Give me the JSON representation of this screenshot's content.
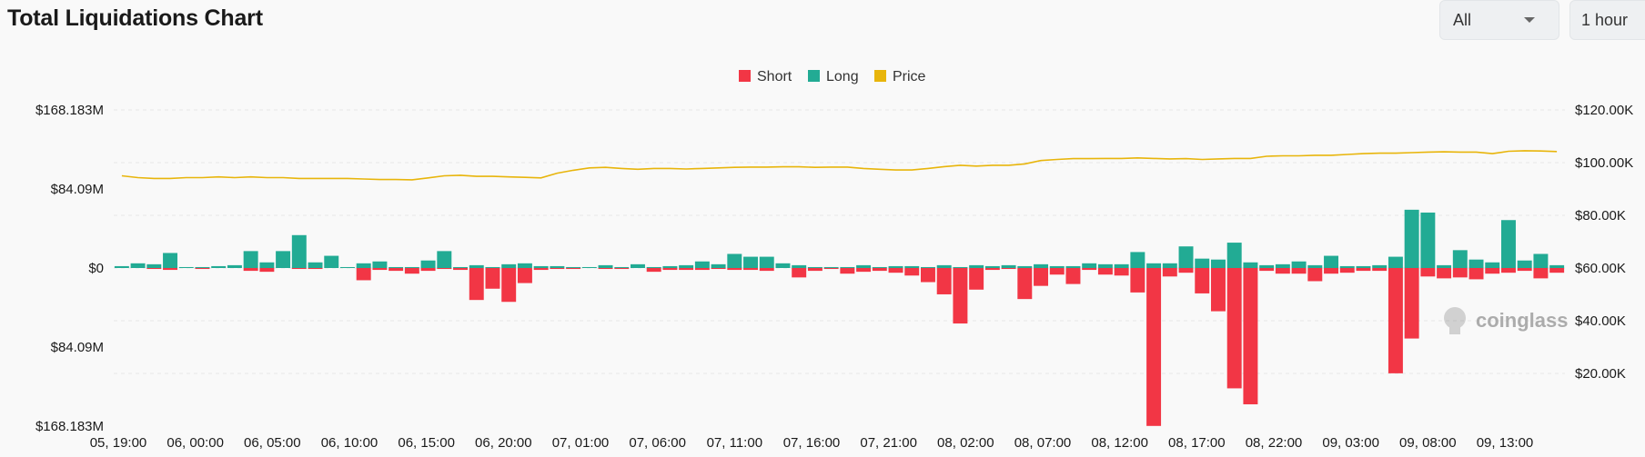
{
  "header": {
    "title": "Total Liquidations Chart",
    "range_select": "All",
    "interval_select": "1 hour"
  },
  "watermark": "coinglass",
  "colors": {
    "short": "#f23645",
    "long": "#22ab94",
    "price": "#e8b50b",
    "grid": "#e6e6e6"
  },
  "chart_data": {
    "type": "bar",
    "title": "Total Liquidations Chart",
    "legend": [
      "Short",
      "Long",
      "Price"
    ],
    "legend_position": "top-center",
    "grid": true,
    "x_tick_labels": [
      "05, 19:00",
      "06, 00:00",
      "06, 05:00",
      "06, 10:00",
      "06, 15:00",
      "06, 20:00",
      "07, 01:00",
      "07, 06:00",
      "07, 11:00",
      "07, 16:00",
      "07, 21:00",
      "08, 02:00",
      "08, 07:00",
      "08, 12:00",
      "08, 17:00",
      "08, 22:00",
      "09, 03:00",
      "09, 08:00",
      "09, 13:00"
    ],
    "y_left": {
      "tick_labels": [
        "$168.183M",
        "$84.09M",
        "$0",
        "$84.09M",
        "$168.183M"
      ],
      "range": [
        -168.183,
        168.183
      ],
      "unit": "$M"
    },
    "y_right": {
      "tick_labels": [
        "$120.00K",
        "$100.00K",
        "$80.00K",
        "$60.00K",
        "$40.00K",
        "$20.00K"
      ],
      "range": [
        0,
        120
      ],
      "unit": "$K"
    },
    "series": [
      {
        "name": "Long",
        "values": [
          2,
          5,
          4,
          16,
          1,
          1,
          2,
          3,
          18,
          6,
          18,
          35,
          6,
          13,
          1,
          5,
          7,
          1,
          1,
          8,
          18,
          1,
          3,
          1,
          4,
          5,
          2,
          2,
          1,
          1,
          3,
          1,
          4,
          1,
          2,
          3,
          7,
          4,
          15,
          12,
          12,
          5,
          3,
          1,
          1,
          1,
          3,
          1,
          2,
          2,
          1,
          3,
          1,
          3,
          2,
          3,
          2,
          4,
          2,
          2,
          5,
          4,
          4,
          17,
          5,
          5,
          23,
          10,
          9,
          27,
          6,
          3,
          4,
          7,
          3,
          13,
          2,
          2,
          3,
          12,
          62,
          59,
          3,
          19,
          9,
          6,
          51,
          8,
          15,
          3
        ]
      },
      {
        "name": "Short",
        "values": [
          0,
          0,
          1,
          2,
          0,
          1,
          0,
          0,
          3,
          4,
          0,
          1,
          1,
          0,
          0,
          13,
          2,
          3,
          6,
          3,
          1,
          2,
          34,
          22,
          36,
          16,
          2,
          1,
          1,
          0,
          1,
          1,
          0,
          4,
          2,
          2,
          2,
          1,
          2,
          2,
          3,
          0,
          10,
          3,
          1,
          6,
          4,
          3,
          5,
          8,
          15,
          28,
          59,
          23,
          2,
          1,
          33,
          19,
          7,
          17,
          2,
          7,
          8,
          26,
          168,
          9,
          5,
          27,
          46,
          128,
          145,
          3,
          6,
          6,
          14,
          6,
          5,
          3,
          3,
          112,
          75,
          9,
          11,
          10,
          12,
          6,
          5,
          3,
          11,
          5
        ]
      },
      {
        "name": "Price",
        "values": [
          95,
          94.3,
          94,
          94,
          94.3,
          94.3,
          94.6,
          94.3,
          94.6,
          94.3,
          94.3,
          94,
          94,
          94,
          94,
          93.8,
          93.6,
          93.6,
          93.5,
          94.2,
          95,
          95.2,
          94.8,
          94.8,
          94.6,
          94.4,
          94.2,
          96,
          97.1,
          98,
          98.2,
          97.8,
          97.5,
          97.8,
          97.8,
          97.6,
          97.8,
          98,
          98.2,
          98.3,
          98.3,
          98.4,
          98.4,
          98.2,
          98.3,
          98.3,
          97.8,
          97.5,
          97.2,
          97.2,
          97.8,
          98.5,
          99,
          98.7,
          99,
          99,
          99.5,
          100.8,
          101.2,
          101.5,
          101.5,
          101.6,
          101.6,
          101.8,
          101.6,
          101.4,
          101.5,
          101.2,
          101.4,
          101.6,
          101.6,
          102.4,
          102.6,
          102.6,
          102.8,
          102.8,
          103.1,
          103.4,
          103.6,
          103.6,
          103.8,
          104,
          104.1,
          104,
          104,
          103.4,
          104.3,
          104.5,
          104.4,
          104.2
        ]
      }
    ]
  }
}
